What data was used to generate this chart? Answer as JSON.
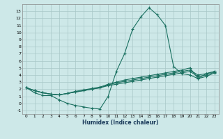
{
  "xlabel": "Humidex (Indice chaleur)",
  "background_color": "#cde8e8",
  "grid_color": "#a8c8c8",
  "line_color": "#1a7060",
  "xlim": [
    -0.5,
    23.5
  ],
  "ylim": [
    -1.5,
    14.0
  ],
  "xticks": [
    0,
    1,
    2,
    3,
    4,
    5,
    6,
    7,
    8,
    9,
    10,
    11,
    12,
    13,
    14,
    15,
    16,
    17,
    18,
    19,
    20,
    21,
    22,
    23
  ],
  "yticks": [
    -1,
    0,
    1,
    2,
    3,
    4,
    5,
    6,
    7,
    8,
    9,
    10,
    11,
    12,
    13
  ],
  "line1_x": [
    0,
    1,
    2,
    3,
    4,
    5,
    6,
    7,
    8,
    9,
    10,
    11,
    12,
    13,
    14,
    15,
    16,
    17,
    18,
    19,
    20,
    21,
    22,
    23
  ],
  "line1_y": [
    2.2,
    1.5,
    1.1,
    1.1,
    0.5,
    0.0,
    -0.3,
    -0.5,
    -0.7,
    -0.8,
    1.0,
    4.5,
    7.0,
    10.5,
    12.2,
    13.5,
    12.5,
    11.0,
    5.2,
    4.2,
    4.0,
    3.5,
    4.2,
    4.5
  ],
  "line2_x": [
    0,
    1,
    2,
    3,
    4,
    5,
    6,
    7,
    8,
    9,
    10,
    11,
    12,
    13,
    14,
    15,
    16,
    17,
    18,
    19,
    20,
    21,
    22,
    23
  ],
  "line2_y": [
    2.2,
    1.8,
    1.5,
    1.3,
    1.2,
    1.4,
    1.6,
    1.8,
    2.0,
    2.2,
    2.5,
    2.7,
    2.9,
    3.1,
    3.3,
    3.5,
    3.7,
    3.9,
    4.1,
    4.3,
    4.5,
    3.8,
    4.0,
    4.4
  ],
  "line3_x": [
    0,
    1,
    2,
    3,
    4,
    5,
    6,
    7,
    8,
    9,
    10,
    11,
    12,
    13,
    14,
    15,
    16,
    17,
    18,
    19,
    20,
    21,
    22,
    23
  ],
  "line3_y": [
    2.2,
    1.8,
    1.5,
    1.3,
    1.2,
    1.4,
    1.7,
    1.9,
    2.1,
    2.3,
    2.7,
    3.0,
    3.3,
    3.5,
    3.7,
    3.9,
    4.1,
    4.3,
    4.5,
    4.7,
    5.0,
    3.5,
    3.8,
    4.3
  ],
  "line4_x": [
    0,
    1,
    2,
    3,
    4,
    5,
    6,
    7,
    8,
    9,
    10,
    11,
    12,
    13,
    14,
    15,
    16,
    17,
    18,
    19,
    20,
    21,
    22,
    23
  ],
  "line4_y": [
    2.2,
    1.8,
    1.5,
    1.3,
    1.2,
    1.4,
    1.6,
    1.8,
    2.0,
    2.2,
    2.6,
    2.9,
    3.1,
    3.3,
    3.5,
    3.7,
    3.9,
    4.1,
    4.3,
    4.5,
    4.7,
    4.0,
    4.2,
    4.5
  ]
}
